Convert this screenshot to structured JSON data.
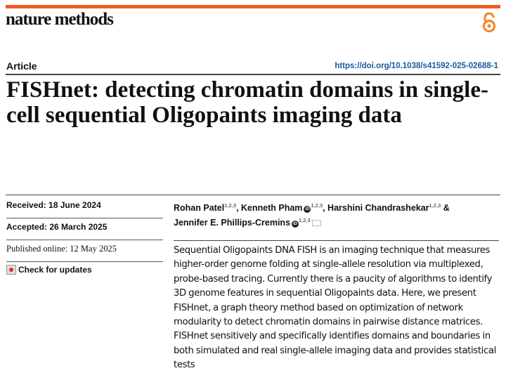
{
  "header": {
    "journal": "nature methods",
    "open_access_icon": "open-access-lock-icon",
    "accent_color": "#f05a22"
  },
  "article": {
    "type": "Article",
    "doi": "https://doi.org/10.1038/s41592-025-02688-1",
    "title": "FISHnet: detecting chromatin domains in single-cell sequential Oligopaints imaging data"
  },
  "dates": {
    "received": "Received: 18 June 2024",
    "accepted": "Accepted: 26 March 2025",
    "published": "Published online: 12 May 2025",
    "check_updates": "Check for updates"
  },
  "authors": [
    {
      "name": "Rohan Patel",
      "aff": "1,2,3",
      "orcid": false
    },
    {
      "name": "Kenneth Pham",
      "aff": "1,2,3",
      "orcid": true
    },
    {
      "name": "Harshini Chandrashekar",
      "aff": "1,2,3",
      "orcid": false
    },
    {
      "name": "Jennifer E. Phillips-Cremins",
      "aff": "1,2,3",
      "orcid": true
    }
  ],
  "author_separators": {
    "comma": ", ",
    "amp": " &"
  },
  "abstract": "Sequential Oligopaints DNA FISH is an imaging technique that measures higher-order genome folding at single-allele resolution via multiplexed, probe-based tracing. Currently there is a paucity of algorithms to identify 3D genome features in sequential Oligopaints data. Here, we present FISHnet, a graph theory method based on optimization of network modularity to detect chromatin domains in pairwise distance matrices. FISHnet sensitively and specifically identifies domains and boundaries in both simulated and real single-allele imaging data and provides statistical tests"
}
